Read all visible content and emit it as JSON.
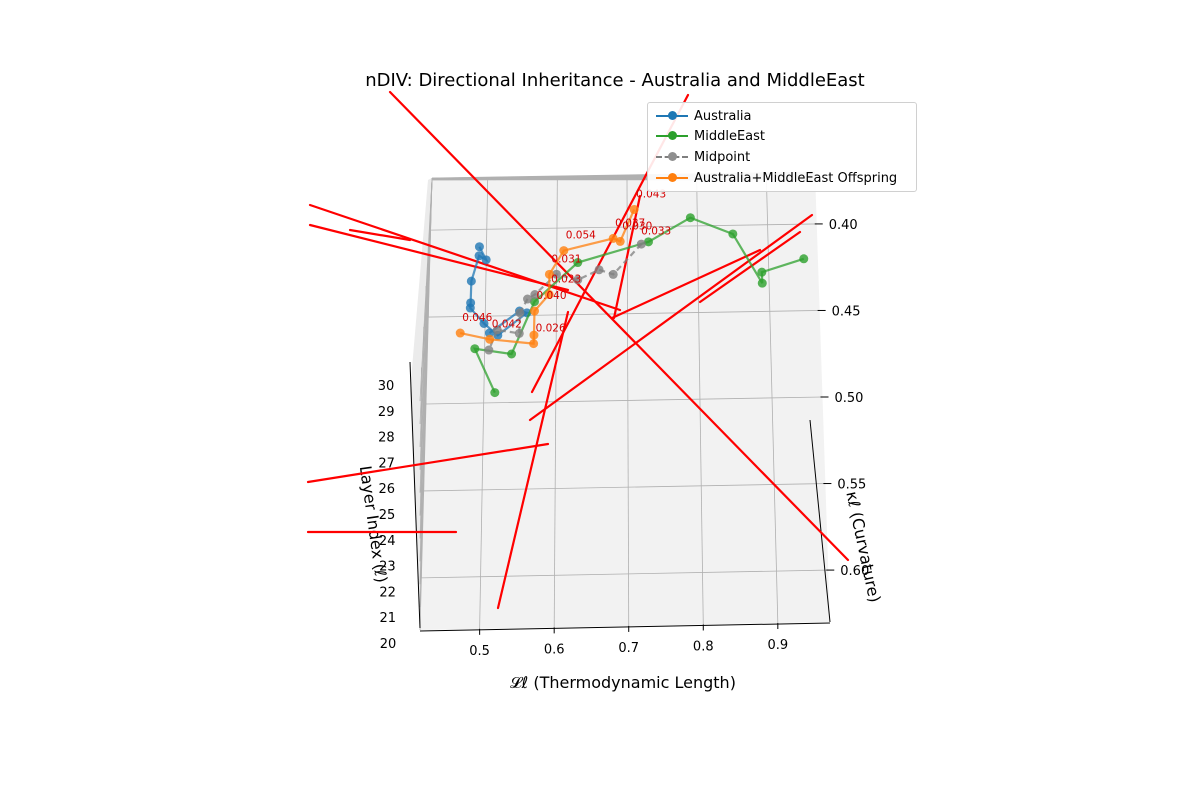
{
  "chart_data": {
    "type": "line3d",
    "title": "nDIV: Directional Inheritance - Australia and MiddleEast",
    "xlabel": "𝓛ℓ (Thermodynamic Length)",
    "ylabel": "κℓ (Curvature)",
    "zlabel": "Layer Index (ℓ)",
    "x_ticks": [
      "0.5",
      "0.6",
      "0.7",
      "0.8",
      "0.9"
    ],
    "y_ticks": [
      "0.40",
      "0.45",
      "0.50",
      "0.55",
      "0.60"
    ],
    "z_ticks": [
      "20",
      "21",
      "22",
      "23",
      "24",
      "25",
      "26",
      "27",
      "28",
      "29",
      "30"
    ],
    "legend_position": "top-right",
    "grid": true,
    "colors": {
      "australia": "#1f77b4",
      "middleeast": "#2ca02c",
      "midpoint": "#7f7f7f",
      "offspring": "#ff7f0e",
      "direction": "#ff0000",
      "annotation": "#d40000"
    },
    "series": [
      {
        "name": "Australia",
        "key": "australia",
        "layers": [
          20,
          21,
          22,
          23,
          24,
          25,
          26,
          27,
          28,
          29,
          30
        ],
        "x": [
          0.49,
          0.5,
          0.49,
          0.48,
          0.48,
          0.48,
          0.5,
          0.52,
          0.56,
          0.55,
          0.51
        ],
        "y": [
          0.41,
          0.42,
          0.42,
          0.44,
          0.46,
          0.47,
          0.49,
          0.51,
          0.5,
          0.51,
          0.55
        ]
      },
      {
        "name": "MiddleEast",
        "key": "middleeast",
        "layers": [
          20,
          21,
          22,
          23,
          24,
          25,
          26,
          27,
          28,
          29,
          30
        ],
        "x": [
          0.95,
          0.89,
          0.89,
          0.85,
          0.79,
          0.73,
          0.63,
          0.57,
          0.54,
          0.49,
          0.52
        ],
        "y": [
          0.42,
          0.43,
          0.44,
          0.41,
          0.4,
          0.42,
          0.44,
          0.48,
          0.54,
          0.55,
          0.62
        ]
      },
      {
        "name": "Midpoint",
        "key": "midpoint",
        "layers": [
          20,
          21,
          22,
          23,
          24,
          25,
          26,
          27,
          28,
          29,
          30
        ],
        "x": [
          0.72,
          0.68,
          0.66,
          0.63,
          0.6,
          0.57,
          0.56,
          0.55,
          0.55,
          0.52,
          0.51
        ],
        "y": [
          0.41,
          0.43,
          0.43,
          0.44,
          0.44,
          0.46,
          0.47,
          0.49,
          0.52,
          0.53,
          0.57
        ]
      },
      {
        "name": "Australia+MiddleEast Offspring",
        "key": "offspring",
        "layers": [
          20,
          21,
          22,
          23,
          24,
          25,
          26,
          27,
          28,
          29,
          30
        ],
        "x": [
          0.71,
          0.69,
          0.68,
          0.61,
          0.59,
          0.59,
          0.57,
          0.57,
          0.57,
          0.51,
          0.47
        ],
        "y": [
          0.39,
          0.41,
          0.41,
          0.42,
          0.44,
          0.46,
          0.48,
          0.51,
          0.53,
          0.54,
          0.55
        ]
      }
    ],
    "annotations": [
      {
        "layer": 20,
        "text": "0.043"
      },
      {
        "layer": 21,
        "text": "0.030"
      },
      {
        "layer": 22,
        "text": "0.037"
      },
      {
        "layer": 22,
        "text": "0.033"
      },
      {
        "layer": 23,
        "text": "0.054"
      },
      {
        "layer": 24,
        "text": "0.031"
      },
      {
        "layer": 25,
        "text": "0.023"
      },
      {
        "layer": 26,
        "text": "0.040"
      },
      {
        "layer": 28,
        "text": "0.026"
      },
      {
        "layer": 29,
        "text": "0.042"
      },
      {
        "layer": 30,
        "text": "0.046"
      }
    ]
  }
}
